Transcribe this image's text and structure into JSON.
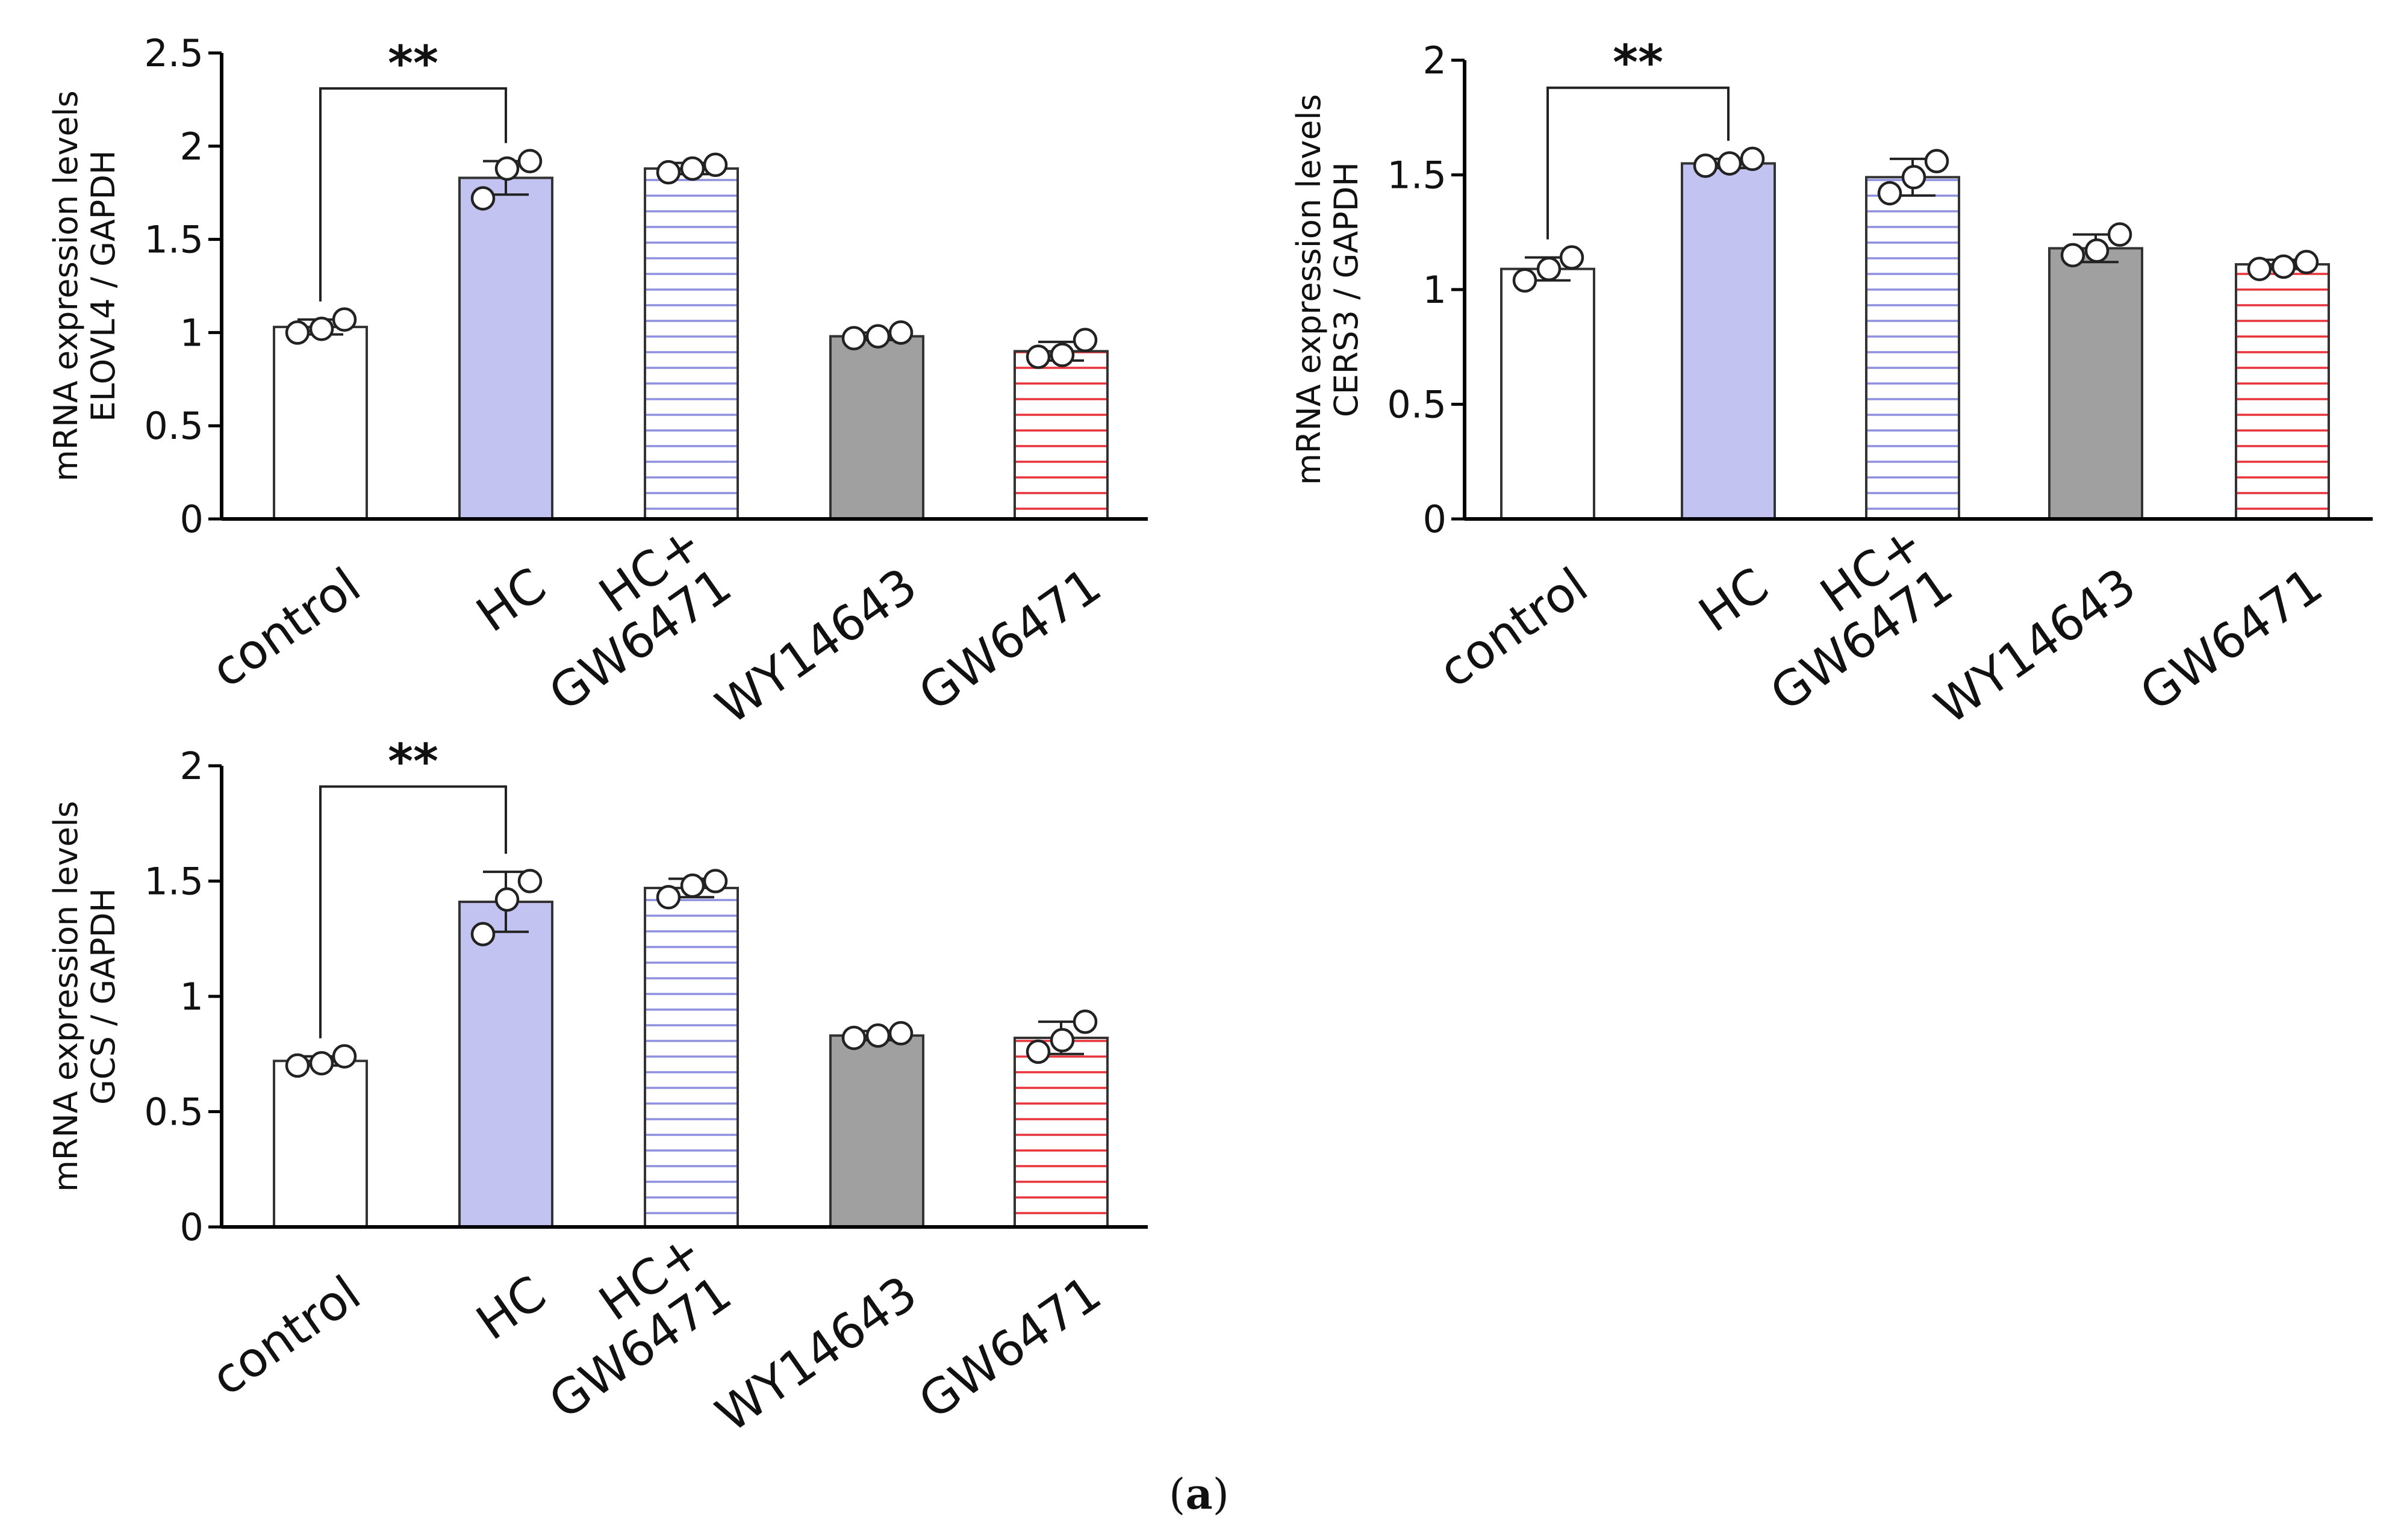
{
  "figure": {
    "caption_open": "(",
    "caption_letter": "a",
    "caption_close": ")"
  },
  "chart_data": [
    {
      "id": "elovl4",
      "type": "bar",
      "title": "",
      "ylabel": [
        "mRNA  expression levels",
        "ELOVL4 / GAPDH"
      ],
      "ylim": [
        0,
        2.5
      ],
      "yticks": [
        0,
        0.5,
        1,
        1.5,
        2,
        2.5
      ],
      "ytick_labels": [
        "0",
        "0.5",
        "1",
        "1.5",
        "2",
        "2.5"
      ],
      "categories": [
        [
          "control"
        ],
        [
          "HC"
        ],
        [
          "HC+",
          "GW6471"
        ],
        [
          "WY14643"
        ],
        [
          "GW6471"
        ]
      ],
      "values": [
        1.03,
        1.83,
        1.88,
        0.98,
        0.9
      ],
      "err": [
        0.04,
        0.09,
        0.03,
        0.02,
        0.05
      ],
      "points": [
        [
          1.0,
          1.02,
          1.07
        ],
        [
          1.72,
          1.88,
          1.92
        ],
        [
          1.86,
          1.88,
          1.9
        ],
        [
          0.97,
          0.98,
          1.0
        ],
        [
          0.87,
          0.88,
          0.96
        ]
      ],
      "styles": [
        "white",
        "solid-blue",
        "hatch-blue",
        "solid-gray",
        "hatch-red"
      ],
      "significance": {
        "from": 0,
        "to": 1,
        "label": "**",
        "y": 2.31
      }
    },
    {
      "id": "cers3",
      "type": "bar",
      "title": "",
      "ylabel": [
        "mRNA expression levels",
        "CERS3 / GAPDH"
      ],
      "ylim": [
        0,
        2
      ],
      "yticks": [
        0,
        0.5,
        1,
        1.5,
        2
      ],
      "ytick_labels": [
        "0",
        "0.5",
        "1",
        "1.5",
        "2"
      ],
      "categories": [
        [
          "control"
        ],
        [
          "HC"
        ],
        [
          "HC+",
          "GW6471"
        ],
        [
          "WY14643"
        ],
        [
          "GW6471"
        ]
      ],
      "values": [
        1.09,
        1.55,
        1.49,
        1.18,
        1.11
      ],
      "err": [
        0.05,
        0.02,
        0.08,
        0.06,
        0.02
      ],
      "points": [
        [
          1.04,
          1.09,
          1.14
        ],
        [
          1.54,
          1.55,
          1.57
        ],
        [
          1.42,
          1.49,
          1.56
        ],
        [
          1.15,
          1.17,
          1.24
        ],
        [
          1.09,
          1.1,
          1.12
        ]
      ],
      "styles": [
        "white",
        "solid-blue",
        "hatch-blue",
        "solid-gray",
        "hatch-red"
      ],
      "significance": {
        "from": 0,
        "to": 1,
        "label": "**",
        "y": 1.88
      }
    },
    {
      "id": "gcs",
      "type": "bar",
      "title": "",
      "ylabel": [
        "mRNA expression levels",
        "GCS / GAPDH"
      ],
      "ylim": [
        0,
        2
      ],
      "yticks": [
        0,
        0.5,
        1,
        1.5,
        2
      ],
      "ytick_labels": [
        "0",
        "0.5",
        "1",
        "1.5",
        "2"
      ],
      "categories": [
        [
          "control"
        ],
        [
          "HC"
        ],
        [
          "HC+",
          "GW6471"
        ],
        [
          "WY14643"
        ],
        [
          "GW6471"
        ]
      ],
      "values": [
        0.72,
        1.41,
        1.47,
        0.83,
        0.82
      ],
      "err": [
        0.02,
        0.13,
        0.04,
        0.02,
        0.07
      ],
      "points": [
        [
          0.7,
          0.71,
          0.74
        ],
        [
          1.27,
          1.42,
          1.5
        ],
        [
          1.43,
          1.48,
          1.5
        ],
        [
          0.82,
          0.83,
          0.84
        ],
        [
          0.76,
          0.81,
          0.89
        ]
      ],
      "styles": [
        "white",
        "solid-blue",
        "hatch-blue",
        "solid-gray",
        "hatch-red"
      ],
      "significance": {
        "from": 0,
        "to": 1,
        "label": "**",
        "y": 1.91
      }
    }
  ],
  "colors": {
    "axis": "#000000",
    "bar_stroke": "#333333",
    "white_fill": "#ffffff",
    "blue_fill": "#c3c3f1",
    "blue_hatch": "#8f8fe0",
    "gray_fill": "#a0a0a0",
    "red_hatch": "#e8333a"
  }
}
